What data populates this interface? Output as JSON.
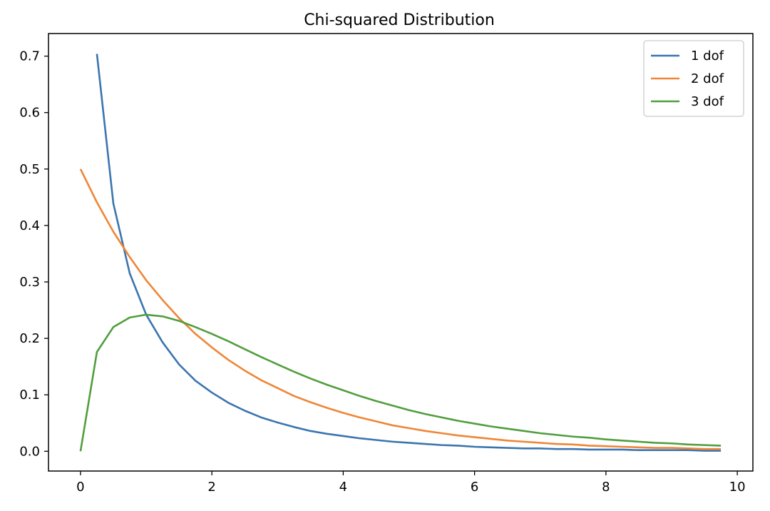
{
  "chart_data": {
    "type": "line",
    "title": "Chi-squared Distribution",
    "xlabel": "",
    "ylabel": "",
    "xlim": [
      -0.4875,
      10.2375
    ],
    "ylim": [
      -0.035,
      0.74
    ],
    "xticks": [
      0,
      2,
      4,
      6,
      8,
      10
    ],
    "yticks": [
      0.0,
      0.1,
      0.2,
      0.3,
      0.4,
      0.5,
      0.6,
      0.7
    ],
    "grid": false,
    "legend_position": "top-right",
    "series": [
      {
        "name": "1 dof",
        "color": "#3b75af",
        "x": [
          0.25,
          0.5,
          0.75,
          1.0,
          1.25,
          1.5,
          1.75,
          2.0,
          2.25,
          2.5,
          2.75,
          3.0,
          3.25,
          3.5,
          3.75,
          4.0,
          4.25,
          4.5,
          4.75,
          5.0,
          5.25,
          5.5,
          5.75,
          6.0,
          6.25,
          6.5,
          6.75,
          7.0,
          7.25,
          7.5,
          7.75,
          8.0,
          8.25,
          8.5,
          8.75,
          9.0,
          9.25,
          9.5,
          9.75
        ],
        "y": [
          0.704,
          0.439,
          0.315,
          0.242,
          0.193,
          0.154,
          0.125,
          0.104,
          0.086,
          0.072,
          0.06,
          0.051,
          0.043,
          0.036,
          0.031,
          0.027,
          0.023,
          0.02,
          0.017,
          0.015,
          0.013,
          0.011,
          0.01,
          0.008,
          0.007,
          0.006,
          0.005,
          0.005,
          0.004,
          0.004,
          0.003,
          0.003,
          0.003,
          0.002,
          0.002,
          0.002,
          0.002,
          0.001,
          0.001
        ]
      },
      {
        "name": "2 dof",
        "color": "#ef8636",
        "x": [
          0.0,
          0.25,
          0.5,
          0.75,
          1.0,
          1.25,
          1.5,
          1.75,
          2.0,
          2.25,
          2.5,
          2.75,
          3.0,
          3.25,
          3.5,
          3.75,
          4.0,
          4.25,
          4.5,
          4.75,
          5.0,
          5.25,
          5.5,
          5.75,
          6.0,
          6.25,
          6.5,
          6.75,
          7.0,
          7.25,
          7.5,
          7.75,
          8.0,
          8.25,
          8.5,
          8.75,
          9.0,
          9.25,
          9.5,
          9.75
        ],
        "y": [
          0.5,
          0.441,
          0.389,
          0.344,
          0.303,
          0.268,
          0.236,
          0.208,
          0.184,
          0.162,
          0.143,
          0.126,
          0.112,
          0.098,
          0.087,
          0.077,
          0.068,
          0.06,
          0.053,
          0.046,
          0.041,
          0.036,
          0.032,
          0.028,
          0.025,
          0.022,
          0.019,
          0.017,
          0.015,
          0.013,
          0.012,
          0.01,
          0.009,
          0.008,
          0.007,
          0.006,
          0.006,
          0.005,
          0.004,
          0.004
        ]
      },
      {
        "name": "3 dof",
        "color": "#519e3e",
        "x": [
          0.0,
          0.25,
          0.5,
          0.75,
          1.0,
          1.25,
          1.5,
          1.75,
          2.0,
          2.25,
          2.5,
          2.75,
          3.0,
          3.25,
          3.5,
          3.75,
          4.0,
          4.25,
          4.5,
          4.75,
          5.0,
          5.25,
          5.5,
          5.75,
          6.0,
          6.25,
          6.5,
          6.75,
          7.0,
          7.25,
          7.5,
          7.75,
          8.0,
          8.25,
          8.5,
          8.75,
          9.0,
          9.25,
          9.5,
          9.75
        ],
        "y": [
          0.0,
          0.176,
          0.22,
          0.237,
          0.242,
          0.239,
          0.231,
          0.22,
          0.208,
          0.195,
          0.181,
          0.167,
          0.154,
          0.141,
          0.129,
          0.118,
          0.108,
          0.098,
          0.089,
          0.081,
          0.073,
          0.066,
          0.06,
          0.054,
          0.049,
          0.044,
          0.04,
          0.036,
          0.032,
          0.029,
          0.026,
          0.024,
          0.021,
          0.019,
          0.017,
          0.015,
          0.014,
          0.012,
          0.011,
          0.01
        ]
      }
    ]
  }
}
